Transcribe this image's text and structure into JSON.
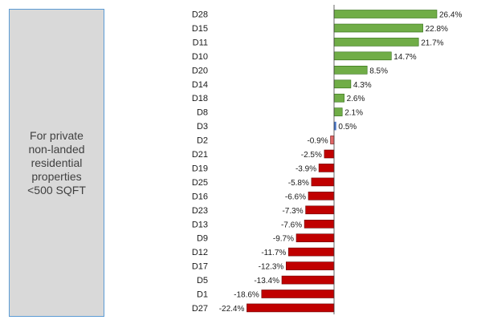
{
  "side_note": {
    "text": "For private\nnon-landed\nresidential\nproperties\n<500 SQFT"
  },
  "colors": {
    "positive": "#70ad47",
    "positive_edge": "#2e6b12",
    "negative": "#c00000",
    "negative_edge": "#6b0000",
    "small_positive": "#4472c4",
    "small_negative": "#e06666",
    "axis": "#404040"
  },
  "chart_data": {
    "type": "bar",
    "orientation": "horizontal",
    "value_format": "percent",
    "title": "",
    "xlabel": "",
    "ylabel": "",
    "xlim": [
      -25,
      28
    ],
    "grid": false,
    "legend": "none",
    "categories": [
      "D28",
      "D15",
      "D11",
      "D10",
      "D20",
      "D14",
      "D18",
      "D8",
      "D3",
      "D2",
      "D21",
      "D19",
      "D25",
      "D16",
      "D23",
      "D13",
      "D9",
      "D12",
      "D17",
      "D5",
      "D1",
      "D27"
    ],
    "values": [
      26.4,
      22.8,
      21.7,
      14.7,
      8.5,
      4.3,
      2.6,
      2.1,
      0.5,
      -0.9,
      -2.5,
      -3.9,
      -5.8,
      -6.6,
      -7.3,
      -7.6,
      -9.7,
      -11.7,
      -12.3,
      -13.4,
      -18.6,
      -22.4
    ],
    "labels": [
      "26.4%",
      "22.8%",
      "21.7%",
      "14.7%",
      "8.5%",
      "4.3%",
      "2.6%",
      "2.1%",
      "0.5%",
      "-0.9%",
      "-2.5%",
      "-3.9%",
      "-5.8%",
      "-6.6%",
      "-7.3%",
      "-7.6%",
      "-9.7%",
      "-11.7%",
      "-12.3%",
      "-13.4%",
      "-18.6%",
      "-22.4%"
    ]
  }
}
